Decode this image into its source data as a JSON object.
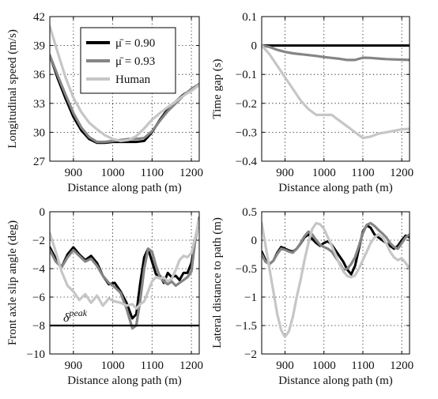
{
  "colors": {
    "mu090": "#000000",
    "mu093": "#858585",
    "human": "#c6c6c6"
  },
  "chart_data": [
    {
      "id": "speed",
      "type": "line",
      "xlabel": "Distance along path (m)",
      "ylabel": "Longitudinal speed (m/s)",
      "xlim": [
        840,
        1220
      ],
      "ylim": [
        27,
        42
      ],
      "xticks": [
        900,
        1000,
        1100,
        1200
      ],
      "yticks": [
        27,
        30,
        33,
        36,
        39,
        42
      ],
      "grid": true,
      "legend": {
        "placement": "top-left",
        "entries": [
          "μ̄ = 0.90",
          "μ̄ = 0.93",
          "Human"
        ]
      },
      "series": [
        {
          "name": "μ̄ = 0.90",
          "color": "#000000",
          "x": [
            840,
            860,
            880,
            900,
            920,
            940,
            960,
            980,
            1000,
            1020,
            1040,
            1060,
            1080,
            1100,
            1120,
            1140,
            1160,
            1180,
            1200,
            1220
          ],
          "y": [
            38,
            35.6,
            33.5,
            31.6,
            30.2,
            29.3,
            28.9,
            28.9,
            29.0,
            29.0,
            29.0,
            29.0,
            29.1,
            30.0,
            31.3,
            32.4,
            33.2,
            33.9,
            34.4,
            35.0
          ]
        },
        {
          "name": "μ̄ = 0.93",
          "color": "#858585",
          "x": [
            840,
            860,
            880,
            900,
            920,
            940,
            960,
            980,
            1000,
            1020,
            1040,
            1060,
            1080,
            1100,
            1120,
            1140,
            1160,
            1180,
            1200,
            1220
          ],
          "y": [
            38,
            35.9,
            33.9,
            32.0,
            30.5,
            29.5,
            29.0,
            29.0,
            29.1,
            29.2,
            29.3,
            29.3,
            29.4,
            30.1,
            31.2,
            32.2,
            33.0,
            33.8,
            34.5,
            35.0
          ]
        },
        {
          "name": "Human",
          "color": "#c6c6c6",
          "x": [
            840,
            860,
            880,
            900,
            920,
            940,
            960,
            980,
            1000,
            1020,
            1040,
            1060,
            1080,
            1100,
            1120,
            1140,
            1160,
            1180,
            1200,
            1220
          ],
          "y": [
            41.0,
            38.3,
            35.7,
            33.6,
            32.1,
            31.0,
            30.3,
            29.7,
            29.3,
            29.1,
            29.2,
            29.6,
            30.4,
            31.3,
            32.0,
            32.6,
            33.2,
            33.8,
            34.3,
            34.9
          ]
        }
      ]
    },
    {
      "id": "timegap",
      "type": "line",
      "xlabel": "Distance along path (m)",
      "ylabel": "Time gap (s)",
      "xlim": [
        840,
        1220
      ],
      "ylim": [
        -0.4,
        0.1
      ],
      "xticks": [
        900,
        1000,
        1100,
        1200
      ],
      "yticks": [
        -0.4,
        -0.3,
        -0.2,
        -0.1,
        0,
        0.1
      ],
      "ytick_labels": [
        "−0.4",
        "−0.3",
        "−0.2",
        "−0.1",
        "0",
        "0.1"
      ],
      "grid": true,
      "series": [
        {
          "name": "μ̄ = 0.90",
          "color": "#000000",
          "x": [
            840,
            1220
          ],
          "y": [
            0,
            0
          ]
        },
        {
          "name": "μ̄ = 0.93",
          "color": "#858585",
          "x": [
            840,
            860,
            880,
            900,
            920,
            940,
            960,
            980,
            1000,
            1020,
            1040,
            1060,
            1080,
            1100,
            1120,
            1140,
            1160,
            1180,
            1200,
            1220
          ],
          "y": [
            0,
            -0.005,
            -0.015,
            -0.022,
            -0.027,
            -0.03,
            -0.033,
            -0.036,
            -0.04,
            -0.043,
            -0.046,
            -0.05,
            -0.05,
            -0.042,
            -0.043,
            -0.045,
            -0.047,
            -0.048,
            -0.049,
            -0.05
          ]
        },
        {
          "name": "Human",
          "color": "#c6c6c6",
          "x": [
            840,
            860,
            880,
            900,
            920,
            940,
            960,
            980,
            1000,
            1020,
            1040,
            1060,
            1080,
            1100,
            1120,
            1140,
            1160,
            1180,
            1200,
            1220
          ],
          "y": [
            0,
            -0.03,
            -0.07,
            -0.11,
            -0.15,
            -0.19,
            -0.22,
            -0.24,
            -0.24,
            -0.24,
            -0.26,
            -0.28,
            -0.3,
            -0.32,
            -0.315,
            -0.305,
            -0.3,
            -0.295,
            -0.29,
            -0.288
          ]
        }
      ]
    },
    {
      "id": "slip",
      "type": "line",
      "xlabel": "Distance along path (m)",
      "ylabel": "Front axle slip angle (deg)",
      "xlim": [
        840,
        1220
      ],
      "ylim": [
        -10,
        0
      ],
      "xticks": [
        900,
        1000,
        1100,
        1200
      ],
      "yticks": [
        -10,
        -8,
        -6,
        -4,
        -2,
        0
      ],
      "ytick_labels": [
        "−10",
        "−8",
        "−6",
        "−4",
        "−2",
        "0"
      ],
      "grid": true,
      "annotations": [
        {
          "text": "δ",
          "sup": "peak"
        }
      ],
      "series": [
        {
          "name": "μ̄ = 0.90",
          "color": "#000000",
          "x": [
            840,
            855,
            870,
            885,
            900,
            915,
            930,
            945,
            960,
            975,
            990,
            1005,
            1020,
            1035,
            1050,
            1060,
            1070,
            1080,
            1090,
            1100,
            1110,
            1120,
            1130,
            1140,
            1150,
            1160,
            1170,
            1180,
            1190,
            1200,
            1210,
            1220
          ],
          "y": [
            -2.5,
            -3.3,
            -3.9,
            -3.0,
            -2.5,
            -3.0,
            -3.4,
            -3.1,
            -3.6,
            -4.5,
            -5.1,
            -5.0,
            -5.6,
            -6.4,
            -7.5,
            -7.2,
            -5.0,
            -3.2,
            -2.6,
            -3.5,
            -4.4,
            -4.5,
            -5.0,
            -4.3,
            -4.6,
            -4.5,
            -4.8,
            -4.3,
            -4.3,
            -3.6,
            -2.0,
            -0.5
          ]
        },
        {
          "name": "μ̄ = 0.93",
          "color": "#858585",
          "x": [
            840,
            855,
            870,
            885,
            900,
            915,
            930,
            945,
            960,
            975,
            990,
            1005,
            1020,
            1035,
            1050,
            1060,
            1070,
            1080,
            1090,
            1100,
            1110,
            1120,
            1130,
            1140,
            1150,
            1160,
            1170,
            1180,
            1190,
            1200,
            1210,
            1220
          ],
          "y": [
            -2.7,
            -3.5,
            -3.9,
            -3.2,
            -2.7,
            -3.1,
            -3.5,
            -3.3,
            -3.8,
            -4.5,
            -5.0,
            -5.3,
            -5.7,
            -6.8,
            -8.2,
            -8.0,
            -6.2,
            -4.0,
            -2.6,
            -2.8,
            -3.8,
            -4.6,
            -4.9,
            -5.1,
            -4.9,
            -5.2,
            -5.0,
            -4.8,
            -4.6,
            -4.2,
            -2.0,
            -0.4
          ]
        },
        {
          "name": "Human",
          "color": "#c6c6c6",
          "x": [
            840,
            855,
            870,
            885,
            900,
            915,
            930,
            945,
            960,
            975,
            990,
            1005,
            1020,
            1035,
            1050,
            1060,
            1070,
            1080,
            1090,
            1100,
            1110,
            1120,
            1130,
            1140,
            1150,
            1160,
            1170,
            1180,
            1190,
            1200,
            1210,
            1220
          ],
          "y": [
            -1.5,
            -2.8,
            -4.2,
            -5.2,
            -5.6,
            -6.2,
            -5.8,
            -6.4,
            -5.9,
            -6.6,
            -6.1,
            -6.3,
            -6.4,
            -6.6,
            -6.5,
            -6.8,
            -6.5,
            -6.3,
            -5.6,
            -4.9,
            -4.6,
            -4.7,
            -4.6,
            -4.9,
            -4.7,
            -4.1,
            -3.4,
            -3.1,
            -3.2,
            -2.9,
            -1.8,
            -0.6
          ]
        },
        {
          "name": "δ peak",
          "color": "#000000",
          "x": [
            840,
            1220
          ],
          "y": [
            -8,
            -8
          ]
        }
      ]
    },
    {
      "id": "lateral",
      "type": "line",
      "xlabel": "Distance along path (m)",
      "ylabel": "Lateral distance to path (m)",
      "xlim": [
        840,
        1220
      ],
      "ylim": [
        -2,
        0.5
      ],
      "xticks": [
        900,
        1000,
        1100,
        1200
      ],
      "yticks": [
        -2,
        -1.5,
        -1,
        -0.5,
        0,
        0.5
      ],
      "ytick_labels": [
        "−2",
        "−1.5",
        "−1",
        "−0.5",
        "0",
        "0.5"
      ],
      "grid": true,
      "series": [
        {
          "name": "μ̄ = 0.90",
          "color": "#000000",
          "x": [
            840,
            850,
            860,
            870,
            880,
            890,
            900,
            910,
            920,
            930,
            940,
            950,
            960,
            970,
            980,
            990,
            1000,
            1010,
            1020,
            1030,
            1040,
            1050,
            1060,
            1070,
            1080,
            1090,
            1100,
            1110,
            1120,
            1130,
            1140,
            1150,
            1160,
            1170,
            1180,
            1190,
            1200,
            1210,
            1220
          ],
          "y": [
            -0.2,
            -0.35,
            -0.42,
            -0.36,
            -0.22,
            -0.12,
            -0.15,
            -0.18,
            -0.2,
            -0.15,
            -0.06,
            0.05,
            0.1,
            0.02,
            -0.05,
            -0.1,
            -0.05,
            -0.02,
            -0.08,
            -0.18,
            -0.28,
            -0.38,
            -0.52,
            -0.6,
            -0.45,
            -0.15,
            0.15,
            0.26,
            0.22,
            0.1,
            0.05,
            0.0,
            -0.05,
            -0.1,
            -0.15,
            -0.1,
            0.0,
            0.08,
            0.05
          ]
        },
        {
          "name": "μ̄ = 0.93",
          "color": "#858585",
          "x": [
            840,
            850,
            860,
            870,
            880,
            890,
            900,
            910,
            920,
            930,
            940,
            950,
            960,
            970,
            980,
            990,
            1000,
            1010,
            1020,
            1030,
            1040,
            1050,
            1060,
            1070,
            1080,
            1090,
            1100,
            1110,
            1120,
            1130,
            1140,
            1150,
            1160,
            1170,
            1180,
            1190,
            1200,
            1210,
            1220
          ],
          "y": [
            -0.25,
            -0.38,
            -0.42,
            -0.36,
            -0.24,
            -0.15,
            -0.17,
            -0.2,
            -0.22,
            -0.15,
            -0.05,
            0.07,
            0.15,
            0.1,
            0.0,
            -0.08,
            -0.12,
            -0.15,
            -0.2,
            -0.3,
            -0.4,
            -0.52,
            -0.5,
            -0.42,
            -0.3,
            -0.1,
            0.12,
            0.27,
            0.3,
            0.25,
            0.18,
            0.12,
            0.05,
            -0.05,
            -0.12,
            -0.15,
            -0.05,
            0.05,
            0.1
          ]
        },
        {
          "name": "Human",
          "color": "#c6c6c6",
          "x": [
            840,
            850,
            860,
            870,
            880,
            890,
            900,
            910,
            920,
            930,
            940,
            950,
            960,
            970,
            980,
            990,
            1000,
            1010,
            1020,
            1030,
            1040,
            1050,
            1060,
            1070,
            1080,
            1090,
            1100,
            1110,
            1120,
            1130,
            1140,
            1150,
            1160,
            1170,
            1180,
            1190,
            1200,
            1210,
            1220
          ],
          "y": [
            0.3,
            -0.1,
            -0.5,
            -0.9,
            -1.3,
            -1.58,
            -1.7,
            -1.6,
            -1.35,
            -1.0,
            -0.7,
            -0.35,
            -0.05,
            0.2,
            0.3,
            0.28,
            0.2,
            0.05,
            -0.1,
            -0.25,
            -0.42,
            -0.55,
            -0.63,
            -0.65,
            -0.62,
            -0.5,
            -0.35,
            -0.2,
            -0.05,
            0.05,
            0.1,
            0.05,
            -0.05,
            -0.2,
            -0.3,
            -0.35,
            -0.32,
            -0.4,
            -0.5
          ]
        }
      ]
    }
  ]
}
